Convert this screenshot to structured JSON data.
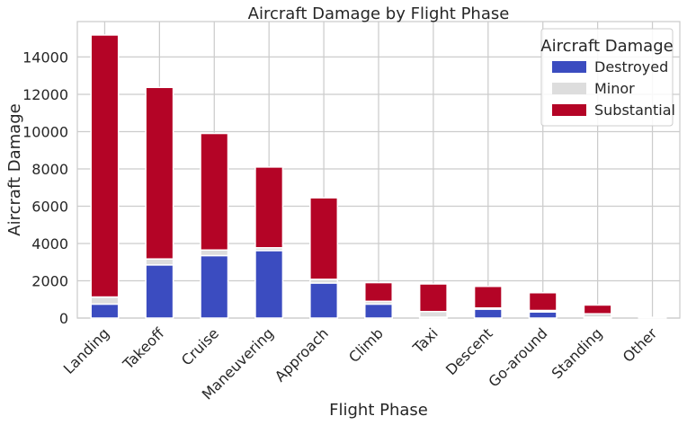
{
  "chart_data": {
    "type": "bar",
    "stacked": true,
    "title": "Aircraft Damage by Flight Phase",
    "xlabel": "Flight Phase",
    "ylabel": "Aircraft Damage",
    "categories": [
      "Landing",
      "Takeoff",
      "Cruise",
      "Maneuvering",
      "Approach",
      "Climb",
      "Taxi",
      "Descent",
      "Go-around",
      "Standing",
      "Other"
    ],
    "series": [
      {
        "name": "Destroyed",
        "color": "#3b4cc0",
        "values": [
          750,
          2850,
          3350,
          3620,
          1880,
          750,
          50,
          480,
          330,
          50,
          10
        ]
      },
      {
        "name": "Minor",
        "color": "#dddddd",
        "values": [
          380,
          320,
          300,
          150,
          200,
          150,
          300,
          60,
          80,
          180,
          10
        ]
      },
      {
        "name": "Substantial",
        "color": "#b40426",
        "values": [
          14050,
          9200,
          6250,
          4330,
          4370,
          1000,
          1480,
          1160,
          950,
          470,
          20
        ]
      }
    ],
    "ylim": [
      0,
      15900
    ],
    "yticks": [
      0,
      2000,
      4000,
      6000,
      8000,
      10000,
      12000,
      14000
    ],
    "ytick_labels": [
      "0",
      "2000",
      "4000",
      "6000",
      "8000",
      "10000",
      "12000",
      "14000"
    ],
    "grid": true,
    "legend": {
      "title": "Aircraft Damage",
      "placement": "top-right"
    }
  }
}
